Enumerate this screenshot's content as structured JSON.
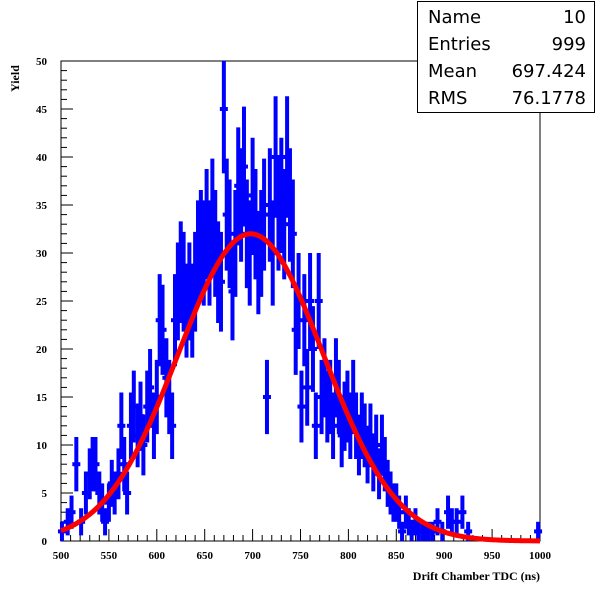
{
  "chart_data": {
    "type": "histogram_with_fit",
    "xlabel": "Drift Chamber TDC (ns)",
    "ylabel": "Yield",
    "xlim": [
      500,
      1000
    ],
    "ylim": [
      0,
      50
    ],
    "x_ticks": [
      500,
      550,
      600,
      650,
      700,
      750,
      800,
      850,
      900,
      950,
      1000
    ],
    "y_ticks": [
      0,
      5,
      10,
      15,
      20,
      25,
      30,
      35,
      40,
      45,
      50
    ],
    "colors": {
      "data": "#0000ff",
      "fit": "#ff0000",
      "axes": "#000000"
    },
    "points": [
      {
        "x": 501,
        "y": 1
      },
      {
        "x": 507,
        "y": 2
      },
      {
        "x": 511,
        "y": 3
      },
      {
        "x": 516,
        "y": 8
      },
      {
        "x": 521,
        "y": 2
      },
      {
        "x": 526,
        "y": 5
      },
      {
        "x": 530,
        "y": 7
      },
      {
        "x": 533,
        "y": 8
      },
      {
        "x": 536,
        "y": 8
      },
      {
        "x": 540,
        "y": 5
      },
      {
        "x": 543,
        "y": 4
      },
      {
        "x": 546,
        "y": 2
      },
      {
        "x": 550,
        "y": 4
      },
      {
        "x": 553,
        "y": 6
      },
      {
        "x": 556,
        "y": 5
      },
      {
        "x": 560,
        "y": 7
      },
      {
        "x": 563,
        "y": 12
      },
      {
        "x": 566,
        "y": 8
      },
      {
        "x": 569,
        "y": 5
      },
      {
        "x": 573,
        "y": 12
      },
      {
        "x": 576,
        "y": 14
      },
      {
        "x": 580,
        "y": 11
      },
      {
        "x": 583,
        "y": 13
      },
      {
        "x": 586,
        "y": 10
      },
      {
        "x": 590,
        "y": 14
      },
      {
        "x": 593,
        "y": 16
      },
      {
        "x": 597,
        "y": 12
      },
      {
        "x": 600,
        "y": 15
      },
      {
        "x": 603,
        "y": 23
      },
      {
        "x": 606,
        "y": 22
      },
      {
        "x": 610,
        "y": 17
      },
      {
        "x": 613,
        "y": 15
      },
      {
        "x": 616,
        "y": 12
      },
      {
        "x": 619,
        "y": 23
      },
      {
        "x": 622,
        "y": 26
      },
      {
        "x": 625,
        "y": 28
      },
      {
        "x": 628,
        "y": 27
      },
      {
        "x": 631,
        "y": 24
      },
      {
        "x": 634,
        "y": 26
      },
      {
        "x": 637,
        "y": 24
      },
      {
        "x": 640,
        "y": 27
      },
      {
        "x": 643,
        "y": 30
      },
      {
        "x": 646,
        "y": 31
      },
      {
        "x": 649,
        "y": 30
      },
      {
        "x": 652,
        "y": 33
      },
      {
        "x": 655,
        "y": 30
      },
      {
        "x": 658,
        "y": 34
      },
      {
        "x": 661,
        "y": 31
      },
      {
        "x": 664,
        "y": 28
      },
      {
        "x": 667,
        "y": 27
      },
      {
        "x": 670,
        "y": 45
      },
      {
        "x": 673,
        "y": 34
      },
      {
        "x": 676,
        "y": 32
      },
      {
        "x": 679,
        "y": 26
      },
      {
        "x": 682,
        "y": 31
      },
      {
        "x": 685,
        "y": 37
      },
      {
        "x": 688,
        "y": 35
      },
      {
        "x": 691,
        "y": 39
      },
      {
        "x": 694,
        "y": 32
      },
      {
        "x": 697,
        "y": 30
      },
      {
        "x": 700,
        "y": 36
      },
      {
        "x": 703,
        "y": 33
      },
      {
        "x": 706,
        "y": 29
      },
      {
        "x": 709,
        "y": 31
      },
      {
        "x": 712,
        "y": 34
      },
      {
        "x": 715,
        "y": 15
      },
      {
        "x": 718,
        "y": 35
      },
      {
        "x": 721,
        "y": 30
      },
      {
        "x": 724,
        "y": 40
      },
      {
        "x": 727,
        "y": 34
      },
      {
        "x": 730,
        "y": 36
      },
      {
        "x": 733,
        "y": 33
      },
      {
        "x": 736,
        "y": 40
      },
      {
        "x": 739,
        "y": 35
      },
      {
        "x": 742,
        "y": 32
      },
      {
        "x": 745,
        "y": 22
      },
      {
        "x": 748,
        "y": 25
      },
      {
        "x": 751,
        "y": 14
      },
      {
        "x": 754,
        "y": 23
      },
      {
        "x": 757,
        "y": 16
      },
      {
        "x": 760,
        "y": 25
      },
      {
        "x": 763,
        "y": 20
      },
      {
        "x": 766,
        "y": 12
      },
      {
        "x": 769,
        "y": 25
      },
      {
        "x": 772,
        "y": 15
      },
      {
        "x": 775,
        "y": 17
      },
      {
        "x": 778,
        "y": 14
      },
      {
        "x": 781,
        "y": 15
      },
      {
        "x": 784,
        "y": 12
      },
      {
        "x": 787,
        "y": 17
      },
      {
        "x": 790,
        "y": 15
      },
      {
        "x": 793,
        "y": 11
      },
      {
        "x": 796,
        "y": 13
      },
      {
        "x": 799,
        "y": 14
      },
      {
        "x": 802,
        "y": 12
      },
      {
        "x": 805,
        "y": 15
      },
      {
        "x": 808,
        "y": 12
      },
      {
        "x": 811,
        "y": 10
      },
      {
        "x": 814,
        "y": 12
      },
      {
        "x": 817,
        "y": 11
      },
      {
        "x": 820,
        "y": 9
      },
      {
        "x": 823,
        "y": 11
      },
      {
        "x": 826,
        "y": 8
      },
      {
        "x": 829,
        "y": 10
      },
      {
        "x": 832,
        "y": 7
      },
      {
        "x": 835,
        "y": 10
      },
      {
        "x": 838,
        "y": 8
      },
      {
        "x": 841,
        "y": 6
      },
      {
        "x": 844,
        "y": 5
      },
      {
        "x": 847,
        "y": 4
      },
      {
        "x": 850,
        "y": 4
      },
      {
        "x": 853,
        "y": 3
      },
      {
        "x": 856,
        "y": 1
      },
      {
        "x": 860,
        "y": 3
      },
      {
        "x": 863,
        "y": 2
      },
      {
        "x": 866,
        "y": 1
      },
      {
        "x": 870,
        "y": 2
      },
      {
        "x": 873,
        "y": 1
      },
      {
        "x": 877,
        "y": 1
      },
      {
        "x": 880,
        "y": 1
      },
      {
        "x": 884,
        "y": 1
      },
      {
        "x": 888,
        "y": 1
      },
      {
        "x": 893,
        "y": 2
      },
      {
        "x": 898,
        "y": 1
      },
      {
        "x": 904,
        "y": 3
      },
      {
        "x": 908,
        "y": 2
      },
      {
        "x": 913,
        "y": 2
      },
      {
        "x": 919,
        "y": 3
      },
      {
        "x": 925,
        "y": 1
      },
      {
        "x": 998,
        "y": 1
      }
    ],
    "fit": {
      "type": "gaussian",
      "constant": 32,
      "mean": 698,
      "sigma": 76
    },
    "stats": [
      {
        "label": "Name",
        "value": "10"
      },
      {
        "label": "Entries",
        "value": "999"
      },
      {
        "label": "Mean",
        "value": "697.424"
      },
      {
        "label": "RMS",
        "value": "76.1778"
      }
    ]
  }
}
